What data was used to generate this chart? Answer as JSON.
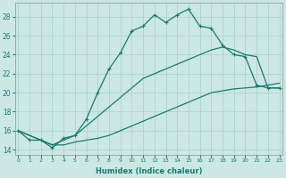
{
  "background_color": "#cce8e4",
  "grid_color": "#aacfca",
  "line_color": "#1a7a6e",
  "xlabel": "Humidex (Indice chaleur)",
  "xlim": [
    -0.5,
    23.5
  ],
  "ylim": [
    13.5,
    29.5
  ],
  "yticks": [
    14,
    16,
    18,
    20,
    22,
    24,
    26,
    28
  ],
  "curve1_x": [
    0,
    1,
    2,
    3,
    4,
    5,
    6,
    7,
    8,
    9,
    10,
    11,
    12,
    13,
    14,
    15,
    16,
    17,
    18,
    19,
    20,
    21,
    22,
    23
  ],
  "curve1_y": [
    16,
    15,
    15,
    14.2,
    15.2,
    15.5,
    17.2,
    20.0,
    22.5,
    24.2,
    26.5,
    27.0,
    28.2,
    27.4,
    28.2,
    28.8,
    27.0,
    26.8,
    25.0,
    24.0,
    23.8,
    20.8,
    20.5,
    20.5
  ],
  "curve2_x": [
    0,
    2,
    3,
    4,
    5,
    6,
    7,
    8,
    9,
    10,
    11,
    12,
    13,
    14,
    15,
    16,
    17,
    18,
    19,
    20,
    21,
    22,
    23
  ],
  "curve2_y": [
    16,
    15,
    14.5,
    15.0,
    15.5,
    16.5,
    17.5,
    18.5,
    19.5,
    20.5,
    21.5,
    22.0,
    22.5,
    23.0,
    23.5,
    24.0,
    24.5,
    24.8,
    24.5,
    24.0,
    23.8,
    20.5,
    20.5
  ],
  "curve3_x": [
    0,
    2,
    3,
    4,
    5,
    6,
    7,
    8,
    9,
    10,
    11,
    12,
    13,
    14,
    15,
    16,
    17,
    18,
    19,
    20,
    21,
    22,
    23
  ],
  "curve3_y": [
    16,
    15,
    14.5,
    14.5,
    14.8,
    15.0,
    15.2,
    15.5,
    16.0,
    16.5,
    17.0,
    17.5,
    18.0,
    18.5,
    19.0,
    19.5,
    20.0,
    20.2,
    20.4,
    20.5,
    20.6,
    20.8,
    21.0
  ]
}
